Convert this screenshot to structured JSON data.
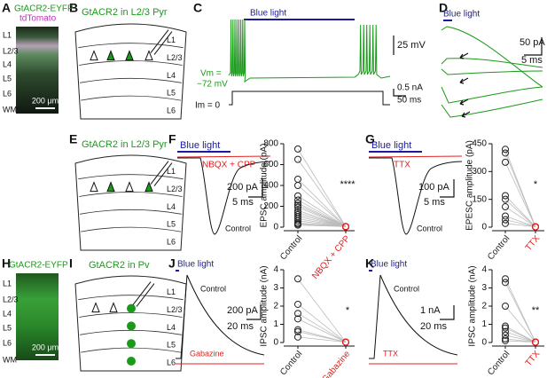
{
  "panel_letters": [
    "A",
    "B",
    "C",
    "D",
    "E",
    "F",
    "G",
    "H",
    "I",
    "J",
    "K"
  ],
  "a": {
    "green_label": "GtACR2-EYFP",
    "magenta_label": "tdTomato",
    "layers": [
      "L1",
      "L2/3",
      "L4",
      "L5",
      "L6",
      "WM"
    ],
    "scale": "200 μm"
  },
  "b": {
    "title": "GtACR2 in L2/3 Pyr",
    "layers": [
      "L1",
      "L2/3",
      "L4",
      "L5",
      "L6"
    ]
  },
  "c": {
    "light": "Blue light",
    "v_scale": "25 mV",
    "vm_label": "Vm =",
    "vm_value": "−72 mV",
    "i_scale": "0.5 nA",
    "t_scale": "50 ms",
    "im_label": "Im = 0"
  },
  "d": {
    "light": "Blue light",
    "y_scale": "50 pA",
    "t_scale": "5 ms"
  },
  "e": {
    "title": "GtACR2 in L2/3 Pyr",
    "layers": [
      "L1",
      "L2/3",
      "L4",
      "L5",
      "L6"
    ]
  },
  "f": {
    "light": "Blue light",
    "drug": "NBQX + CPP",
    "y_scale": "200 pA",
    "t_scale": "5 ms",
    "control": "Control"
  },
  "g": {
    "light": "Blue light",
    "drug": "TTX",
    "y_scale": "100 pA",
    "t_scale": "5 ms",
    "control": "Control"
  },
  "h": {
    "label": "GtACR2-EYFP",
    "layers": [
      "L1",
      "L2/3",
      "L4",
      "L5",
      "L6",
      "WM"
    ],
    "scale": "200 μm"
  },
  "i": {
    "title": "GtACR2 in Pv",
    "layers": [
      "L1",
      "L2/3",
      "L4",
      "L5",
      "L6"
    ]
  },
  "j": {
    "light": "Blue light",
    "control": "Control",
    "y_scale": "200 pA",
    "t_scale": "20 ms",
    "drug": "Gabazine"
  },
  "k": {
    "light": "Blue light",
    "control": "Control",
    "y_scale": "1 nA",
    "t_scale": "20 ms",
    "drug": "TTX"
  },
  "chart_data": [
    {
      "type": "paired",
      "ylabel": "EPSC amplitude (pA)",
      "ylim": [
        0,
        800
      ],
      "yticks": [
        0,
        200,
        400,
        600,
        800
      ],
      "significance": "****",
      "series": [
        {
          "name": "Control",
          "color": "#222222",
          "values": [
            750,
            650,
            460,
            400,
            300,
            260,
            230,
            210,
            190,
            160,
            140,
            120,
            100,
            80,
            60,
            40,
            30,
            20
          ]
        },
        {
          "name": "NBQX + CPP",
          "color": "#e02020",
          "values": [
            5,
            5,
            5,
            5,
            5,
            5,
            5,
            5,
            5,
            5,
            5,
            5,
            5,
            5,
            5,
            5,
            5,
            5
          ]
        }
      ]
    },
    {
      "type": "paired",
      "ylabel": "EPESC amplitude (pA)",
      "ylim": [
        0,
        450
      ],
      "yticks": [
        0,
        150,
        300,
        450
      ],
      "significance": "*",
      "series": [
        {
          "name": "Control",
          "color": "#222222",
          "values": [
            420,
            400,
            350,
            170,
            150,
            110,
            60,
            40,
            20
          ]
        },
        {
          "name": "TTX",
          "color": "#e02020",
          "values": [
            2,
            2,
            2,
            2,
            2,
            2,
            2,
            2,
            2
          ]
        }
      ]
    },
    {
      "type": "paired",
      "ylabel": "IPSC amplitude (nA)",
      "ylim": [
        0,
        4
      ],
      "yticks": [
        0,
        1,
        2,
        3,
        4
      ],
      "significance": "*",
      "series": [
        {
          "name": "Control",
          "color": "#222222",
          "values": [
            3.5,
            2.1,
            1.6,
            1.3,
            0.7,
            0.6,
            0.3
          ]
        },
        {
          "name": "Gabazine",
          "color": "#e02020",
          "values": [
            0.02,
            0.02,
            0.02,
            0.02,
            0.02,
            0.02,
            0.02
          ]
        }
      ]
    },
    {
      "type": "paired",
      "ylabel": "IPSC amplitude (nA)",
      "ylim": [
        0,
        4
      ],
      "yticks": [
        0,
        1,
        2,
        3,
        4
      ],
      "significance": "**",
      "series": [
        {
          "name": "Control",
          "color": "#222222",
          "values": [
            3.5,
            3.3,
            2.0,
            0.9,
            0.8,
            0.6,
            0.4,
            0.2,
            0.1
          ]
        },
        {
          "name": "TTX",
          "color": "#e02020",
          "values": [
            0.02,
            0.02,
            0.02,
            0.02,
            0.02,
            0.02,
            0.02,
            0.02,
            0.02
          ]
        }
      ]
    }
  ]
}
